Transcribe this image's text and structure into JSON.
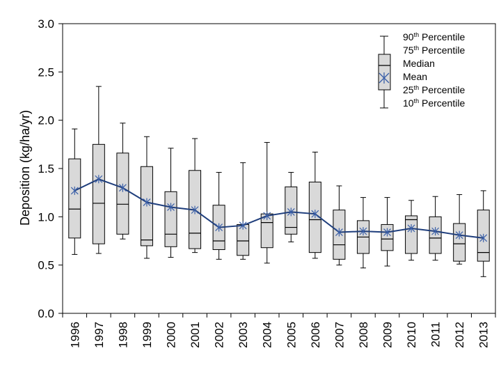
{
  "chart_data": {
    "type": "boxplot",
    "title": "",
    "xlabel": "",
    "ylabel": "Deposition (kg/ha/yr)",
    "ylim": [
      0,
      3.0
    ],
    "yticks": [
      "0.0",
      "0.5",
      "1.0",
      "1.5",
      "2.0",
      "2.5",
      "3.0"
    ],
    "grid": false,
    "legend_position": "top-right",
    "legend": {
      "p90": {
        "base": "90",
        "sup": "th",
        "rest": " Percentile"
      },
      "p75": {
        "base": "75",
        "sup": "th",
        "rest": " Percentile"
      },
      "median": "Median",
      "mean": "Mean",
      "p25": {
        "base": "25",
        "sup": "th",
        "rest": " Percentile"
      },
      "p10": {
        "base": "10",
        "sup": "th",
        "rest": " Percentile"
      }
    },
    "colors": {
      "box_fill": "#d9d9d9",
      "mean_line": "#1f3e7c",
      "mean_marker": "#3a5fa8",
      "axis": "#000000"
    },
    "categories": [
      "1996",
      "1997",
      "1998",
      "1999",
      "2000",
      "2001",
      "2002",
      "2003",
      "2004",
      "2005",
      "2006",
      "2007",
      "2008",
      "2009",
      "2010",
      "2011",
      "2012",
      "2013"
    ],
    "p10": [
      0.61,
      0.62,
      0.77,
      0.57,
      0.58,
      0.63,
      0.56,
      0.56,
      0.52,
      0.74,
      0.57,
      0.5,
      0.47,
      0.49,
      0.55,
      0.55,
      0.51,
      0.38
    ],
    "p25": [
      0.78,
      0.72,
      0.82,
      0.7,
      0.69,
      0.67,
      0.66,
      0.6,
      0.68,
      0.82,
      0.63,
      0.56,
      0.62,
      0.65,
      0.62,
      0.62,
      0.54,
      0.54
    ],
    "median": [
      1.08,
      1.14,
      1.13,
      0.76,
      0.82,
      0.83,
      0.75,
      0.75,
      0.94,
      0.89,
      0.97,
      0.71,
      0.79,
      0.77,
      0.97,
      0.78,
      0.72,
      0.63
    ],
    "p75": [
      1.6,
      1.75,
      1.66,
      1.52,
      1.26,
      1.48,
      1.12,
      0.92,
      1.03,
      1.31,
      1.36,
      1.07,
      0.96,
      0.92,
      1.01,
      1.0,
      0.93,
      1.07
    ],
    "p90": [
      1.91,
      2.35,
      1.97,
      1.83,
      1.71,
      1.81,
      1.46,
      1.56,
      1.77,
      1.46,
      1.67,
      1.32,
      1.2,
      1.2,
      1.17,
      1.21,
      1.23,
      1.27
    ],
    "mean": [
      1.27,
      1.39,
      1.3,
      1.15,
      1.1,
      1.07,
      0.89,
      0.91,
      1.01,
      1.05,
      1.03,
      0.84,
      0.85,
      0.84,
      0.88,
      0.85,
      0.81,
      0.78
    ]
  }
}
